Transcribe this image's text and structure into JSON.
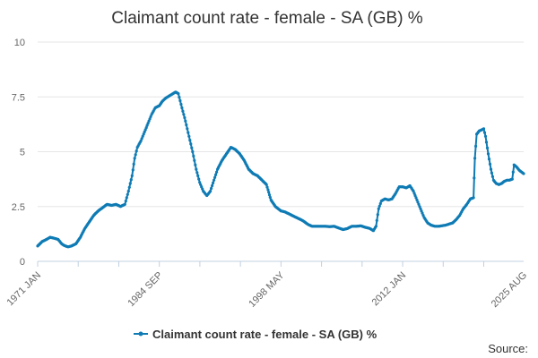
{
  "chart_data": {
    "type": "line",
    "title": "Claimant count rate - female - SA (GB) %",
    "xlabel": "",
    "ylabel": "",
    "x_tick_labels": [
      "1971 JAN",
      "1984 SEP",
      "1998 MAY",
      "2012 JAN",
      "2025 AUG"
    ],
    "x_tick_years": [
      1971.0,
      1984.67,
      1998.33,
      2012.0,
      2025.58
    ],
    "y_ticks": [
      "0",
      "2.5",
      "5",
      "7.5",
      "10"
    ],
    "ylim": [
      0,
      10
    ],
    "xlim": [
      1971.0,
      2025.58
    ],
    "grid": true,
    "legend_position": "bottom",
    "series": [
      {
        "name": "Claimant count rate - female - SA (GB) %",
        "color": "#0f7bb4",
        "points": [
          [
            1971.0,
            0.7
          ],
          [
            1971.5,
            0.9
          ],
          [
            1972.0,
            1.0
          ],
          [
            1972.4,
            1.1
          ],
          [
            1972.9,
            1.05
          ],
          [
            1973.3,
            1.0
          ],
          [
            1973.7,
            0.8
          ],
          [
            1974.0,
            0.72
          ],
          [
            1974.4,
            0.66
          ],
          [
            1974.8,
            0.7
          ],
          [
            1975.3,
            0.8
          ],
          [
            1975.8,
            1.1
          ],
          [
            1976.3,
            1.5
          ],
          [
            1976.8,
            1.8
          ],
          [
            1977.3,
            2.1
          ],
          [
            1977.8,
            2.3
          ],
          [
            1978.3,
            2.45
          ],
          [
            1978.8,
            2.6
          ],
          [
            1979.3,
            2.55
          ],
          [
            1979.8,
            2.6
          ],
          [
            1980.3,
            2.5
          ],
          [
            1980.8,
            2.6
          ],
          [
            1981.2,
            3.2
          ],
          [
            1981.6,
            3.9
          ],
          [
            1981.9,
            4.7
          ],
          [
            1982.2,
            5.2
          ],
          [
            1982.6,
            5.5
          ],
          [
            1983.0,
            5.9
          ],
          [
            1983.4,
            6.3
          ],
          [
            1983.8,
            6.7
          ],
          [
            1984.2,
            7.0
          ],
          [
            1984.67,
            7.1
          ],
          [
            1985.0,
            7.3
          ],
          [
            1985.4,
            7.45
          ],
          [
            1985.8,
            7.55
          ],
          [
            1986.2,
            7.65
          ],
          [
            1986.5,
            7.72
          ],
          [
            1986.8,
            7.65
          ],
          [
            1987.2,
            7.0
          ],
          [
            1987.6,
            6.4
          ],
          [
            1988.0,
            5.7
          ],
          [
            1988.4,
            5.0
          ],
          [
            1988.8,
            4.2
          ],
          [
            1989.2,
            3.6
          ],
          [
            1989.6,
            3.2
          ],
          [
            1990.0,
            3.0
          ],
          [
            1990.4,
            3.2
          ],
          [
            1990.8,
            3.7
          ],
          [
            1991.2,
            4.2
          ],
          [
            1991.7,
            4.6
          ],
          [
            1992.2,
            4.9
          ],
          [
            1992.7,
            5.2
          ],
          [
            1993.2,
            5.1
          ],
          [
            1993.7,
            4.9
          ],
          [
            1994.2,
            4.6
          ],
          [
            1994.7,
            4.2
          ],
          [
            1995.2,
            4.0
          ],
          [
            1995.7,
            3.9
          ],
          [
            1996.2,
            3.7
          ],
          [
            1996.7,
            3.5
          ],
          [
            1997.2,
            2.8
          ],
          [
            1997.7,
            2.5
          ],
          [
            1998.33,
            2.3
          ],
          [
            1998.8,
            2.25
          ],
          [
            1999.3,
            2.15
          ],
          [
            1999.8,
            2.05
          ],
          [
            2000.3,
            1.95
          ],
          [
            2000.8,
            1.85
          ],
          [
            2001.3,
            1.7
          ],
          [
            2001.8,
            1.6
          ],
          [
            2002.3,
            1.6
          ],
          [
            2002.8,
            1.6
          ],
          [
            2003.3,
            1.6
          ],
          [
            2003.8,
            1.58
          ],
          [
            2004.3,
            1.6
          ],
          [
            2004.8,
            1.52
          ],
          [
            2005.3,
            1.45
          ],
          [
            2005.8,
            1.5
          ],
          [
            2006.3,
            1.6
          ],
          [
            2006.8,
            1.6
          ],
          [
            2007.3,
            1.62
          ],
          [
            2007.8,
            1.55
          ],
          [
            2008.3,
            1.5
          ],
          [
            2008.7,
            1.4
          ],
          [
            2009.0,
            1.6
          ],
          [
            2009.3,
            2.4
          ],
          [
            2009.6,
            2.75
          ],
          [
            2010.0,
            2.85
          ],
          [
            2010.4,
            2.8
          ],
          [
            2010.8,
            2.85
          ],
          [
            2011.2,
            3.1
          ],
          [
            2011.6,
            3.4
          ],
          [
            2012.0,
            3.4
          ],
          [
            2012.4,
            3.35
          ],
          [
            2012.8,
            3.45
          ],
          [
            2013.2,
            3.2
          ],
          [
            2013.6,
            2.8
          ],
          [
            2014.0,
            2.4
          ],
          [
            2014.4,
            2.0
          ],
          [
            2014.8,
            1.75
          ],
          [
            2015.2,
            1.65
          ],
          [
            2015.6,
            1.6
          ],
          [
            2016.0,
            1.6
          ],
          [
            2016.4,
            1.62
          ],
          [
            2016.8,
            1.65
          ],
          [
            2017.2,
            1.7
          ],
          [
            2017.6,
            1.75
          ],
          [
            2018.0,
            1.9
          ],
          [
            2018.4,
            2.1
          ],
          [
            2018.8,
            2.4
          ],
          [
            2019.2,
            2.6
          ],
          [
            2019.6,
            2.85
          ],
          [
            2019.95,
            2.9
          ],
          [
            2020.1,
            4.7
          ],
          [
            2020.3,
            5.8
          ],
          [
            2020.6,
            5.95
          ],
          [
            2020.9,
            6.0
          ],
          [
            2021.1,
            6.05
          ],
          [
            2021.3,
            5.7
          ],
          [
            2021.6,
            4.9
          ],
          [
            2021.9,
            4.2
          ],
          [
            2022.2,
            3.7
          ],
          [
            2022.5,
            3.55
          ],
          [
            2022.8,
            3.5
          ],
          [
            2023.1,
            3.55
          ],
          [
            2023.4,
            3.65
          ],
          [
            2023.7,
            3.7
          ],
          [
            2024.0,
            3.7
          ],
          [
            2024.3,
            3.75
          ],
          [
            2024.5,
            4.4
          ],
          [
            2024.8,
            4.3
          ],
          [
            2025.1,
            4.15
          ],
          [
            2025.58,
            4.0
          ]
        ]
      }
    ],
    "legend_label": "Claimant count rate - female - SA (GB) %",
    "source_label": "Source:"
  }
}
